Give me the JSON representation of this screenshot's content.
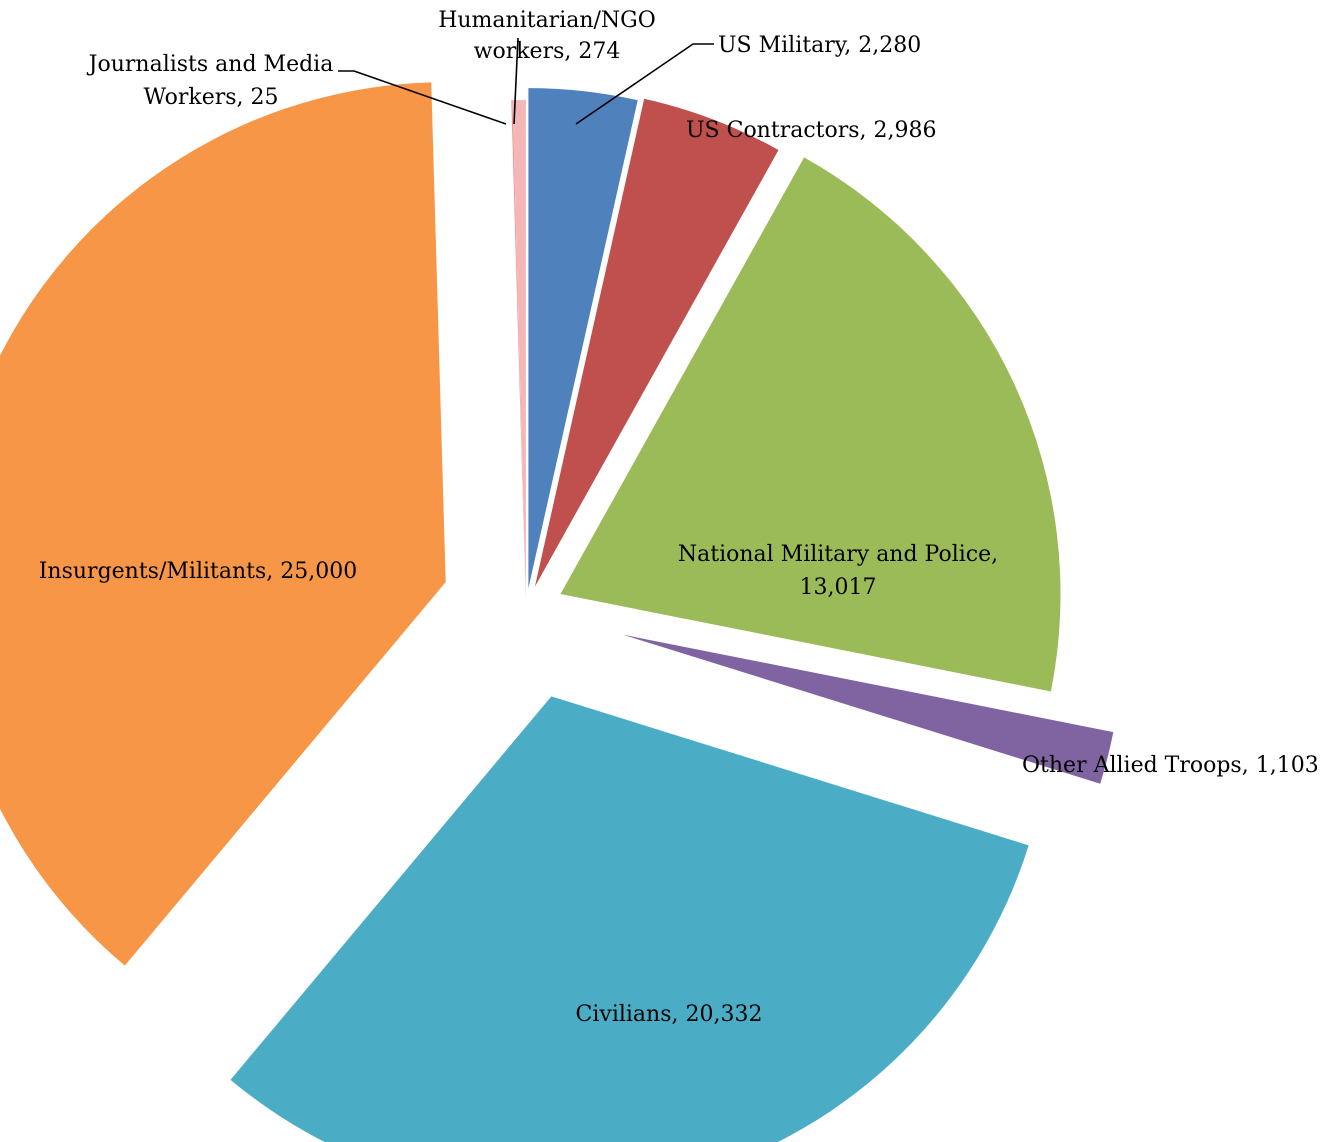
{
  "chart_data": {
    "type": "pie",
    "title": "",
    "legend": "none",
    "slices": [
      {
        "label": "US Military, 2,280",
        "name": "US Military",
        "value": 2280,
        "color": "#4F81BD"
      },
      {
        "label": "US Contractors, 2,986",
        "name": "US Contractors",
        "value": 2986,
        "color": "#C0504D"
      },
      {
        "label": "National Military and Police, 13,017",
        "name": "National Military and Police",
        "value": 13017,
        "color": "#9BBB59"
      },
      {
        "label": "Other Allied Troops, 1,103",
        "name": "Other Allied Troops",
        "value": 1103,
        "color": "#8064A2"
      },
      {
        "label": "Civilians, 20,332",
        "name": "Civilians",
        "value": 20332,
        "color": "#4BACC6"
      },
      {
        "label": "Insurgents/Militants, 25,000",
        "name": "Insurgents/Militants",
        "value": 25000,
        "color": "#F79646"
      },
      {
        "label": "Journalists and Media Workers, 25",
        "name": "Journalists and Media Workers",
        "value": 25,
        "color": "#EE9494"
      },
      {
        "label": "Humanitarian/NGO workers, 274",
        "name": "Humanitarian/NGO workers",
        "value": 274,
        "color": "#F4B6B6"
      }
    ]
  }
}
